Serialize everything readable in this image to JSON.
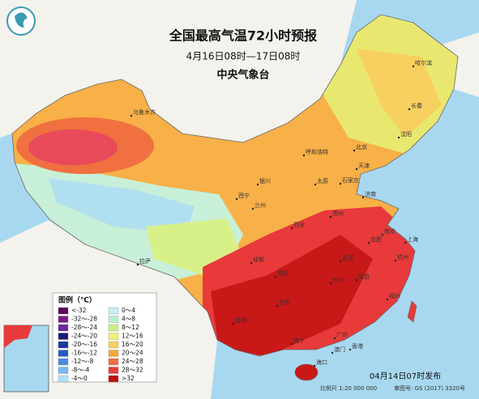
{
  "header": {
    "title": "全国最高气温72小时预报",
    "subtitle": "4月16日08时—17日08时",
    "agency": "中央气象台"
  },
  "legend": {
    "title": "图例（℃）",
    "items": [
      {
        "label": "<-32",
        "color": "#5a0a5a"
      },
      {
        "label": "-32～-28",
        "color": "#7a1a8a"
      },
      {
        "label": "-28～-24",
        "color": "#6a2aa0"
      },
      {
        "label": "-24～-20",
        "color": "#1a1a7a"
      },
      {
        "label": "-20～-16",
        "color": "#1a3aa0"
      },
      {
        "label": "-16～-12",
        "color": "#2a5ac0"
      },
      {
        "label": "-12～-8",
        "color": "#4a8ae0"
      },
      {
        "label": "-8～-4",
        "color": "#7ab8f0"
      },
      {
        "label": "-4～0",
        "color": "#b0e0f8"
      },
      {
        "label": "0～4",
        "color": "#c8f0f0"
      },
      {
        "label": "4～8",
        "color": "#b8f0d0"
      },
      {
        "label": "8～12",
        "color": "#c8f088"
      },
      {
        "label": "12～16",
        "color": "#f0f078"
      },
      {
        "label": "16～20",
        "color": "#f8d060"
      },
      {
        "label": "20～24",
        "color": "#f8a840"
      },
      {
        "label": "24～28",
        "color": "#f07040"
      },
      {
        "label": "28～32",
        "color": "#e83a3a"
      },
      {
        "label": ">32",
        "color": "#c01010"
      }
    ]
  },
  "cities": [
    "乌鲁木齐",
    "哈尔滨",
    "长春",
    "沈阳",
    "呼和浩特",
    "北京",
    "天津",
    "银川",
    "太原",
    "石家庄",
    "济南",
    "西宁",
    "兰州",
    "郑州",
    "西安",
    "拉萨",
    "成都",
    "重庆",
    "武汉",
    "合肥",
    "南京",
    "上海",
    "杭州",
    "长沙",
    "南昌",
    "贵阳",
    "昆明",
    "福州",
    "南宁",
    "广州",
    "香港",
    "澳门",
    "海口"
  ],
  "footer": {
    "issued": "04月14日07时发布",
    "scale": "比例尺 1:20 000 000",
    "map_number": "审图号: GS (2017) 3320号"
  }
}
